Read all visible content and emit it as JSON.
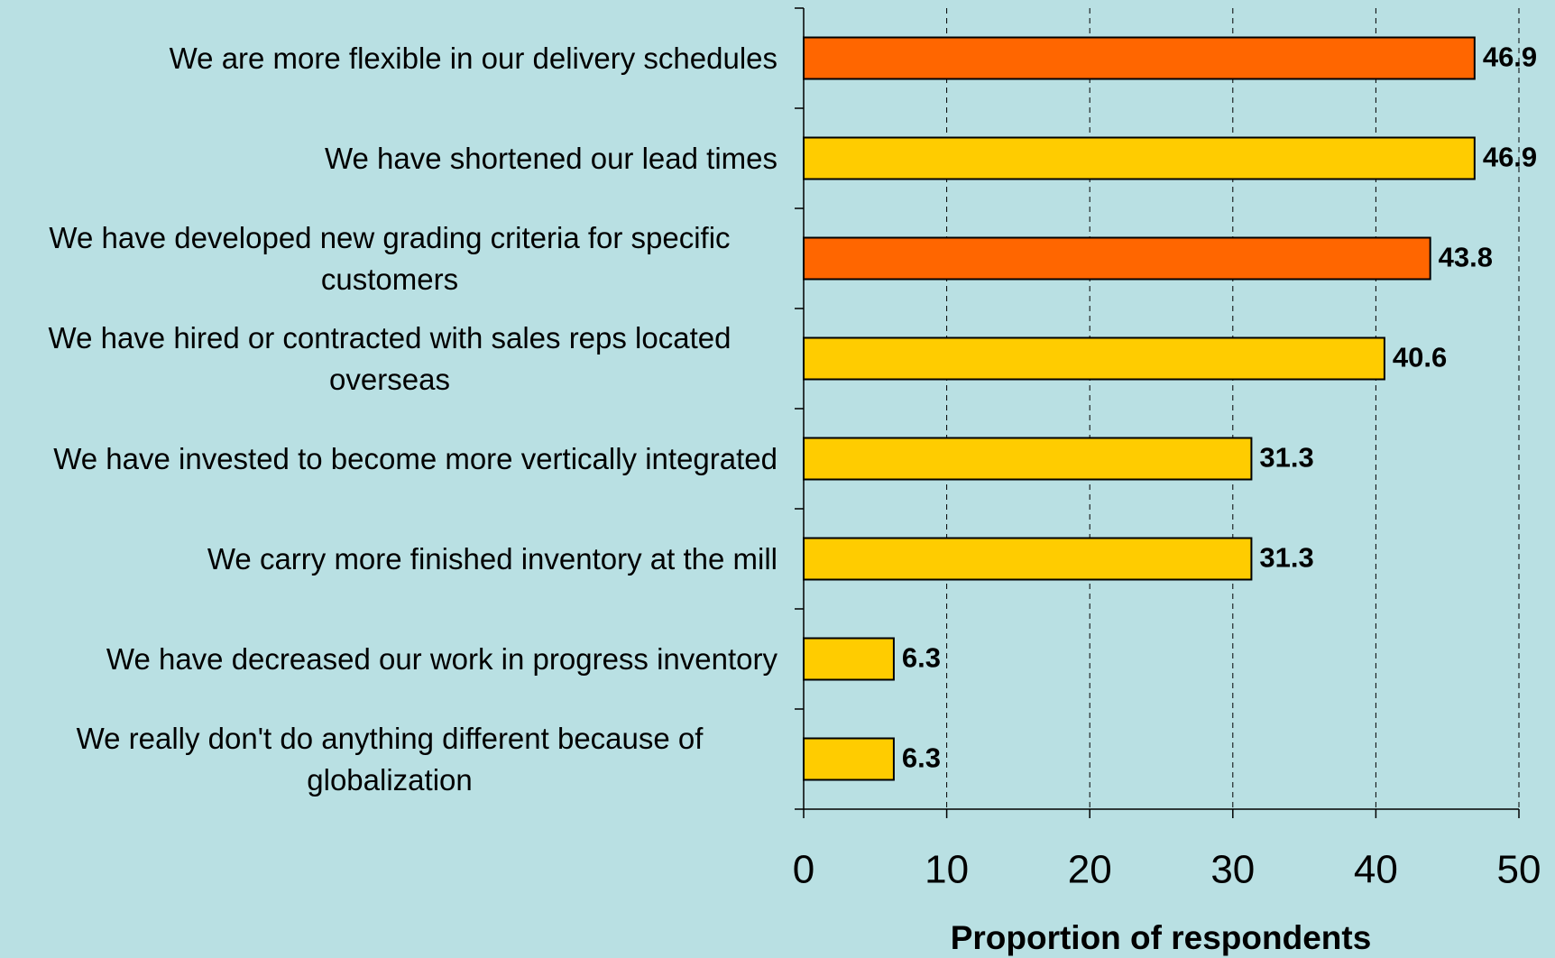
{
  "chart_data": {
    "type": "bar",
    "orientation": "horizontal",
    "categories": [
      "We are more flexible in our delivery schedules",
      "We have shortened our lead times",
      "We have developed new grading criteria for specific customers",
      "We have hired or contracted with sales reps located overseas",
      "We have invested to become more vertically integrated",
      "We carry more finished inventory at the mill",
      "We have decreased our work in progress inventory",
      "We really don't do anything different because of globalization"
    ],
    "values": [
      46.9,
      46.9,
      43.8,
      40.6,
      31.3,
      31.3,
      6.3,
      6.3
    ],
    "colors": [
      "#ff6600",
      "#ffcc00",
      "#ff6600",
      "#ffcc00",
      "#ffcc00",
      "#ffcc00",
      "#ffcc00",
      "#ffcc00"
    ],
    "xlabel": "Proportion of respondents",
    "xlim": [
      0,
      50
    ],
    "xticks": [
      0,
      10,
      20,
      30,
      40,
      50
    ],
    "grid": true
  }
}
